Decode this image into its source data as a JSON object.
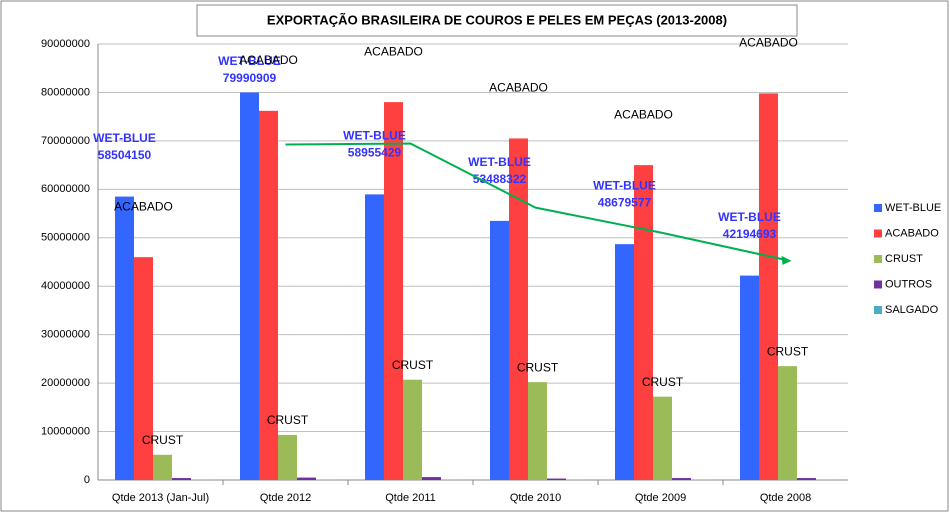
{
  "chart_data": {
    "type": "bar",
    "title": "EXPORTAÇÃO BRASILEIRA DE COUROS E PELES EM PEÇAS (2013-2008)",
    "categories": [
      "Qtde 2013 (Jan-Jul)",
      "Qtde 2012",
      "Qtde 2011",
      "Qtde 2010",
      "Qtde 2009",
      "Qtde 2008"
    ],
    "series": [
      {
        "name": "WET-BLUE",
        "color": "#3366ff",
        "labels": "name_value",
        "values": [
          58504150,
          79990909,
          58955429,
          53488322,
          48679577,
          42194693
        ]
      },
      {
        "name": "ACABADO",
        "color": "#ff4040",
        "labels": "name",
        "values": [
          46000000,
          76200000,
          78000000,
          70500000,
          65000000,
          79800000
        ]
      },
      {
        "name": "CRUST",
        "color": "#9bbb59",
        "labels": "name",
        "values": [
          5200000,
          9300000,
          20700000,
          20200000,
          17200000,
          23500000
        ]
      },
      {
        "name": "OUTROS",
        "color": "#7030a0",
        "values": [
          400000,
          500000,
          600000,
          300000,
          400000,
          400000
        ]
      },
      {
        "name": "SALGADO",
        "color": "#4bacc6",
        "values": [
          100000,
          100000,
          100000,
          100000,
          100000,
          100000
        ]
      }
    ],
    "trendline": {
      "color": "#00b050",
      "values": [
        null,
        69247530,
        69473169,
        56221876,
        51083950,
        45437135
      ]
    },
    "ylim": [
      0,
      90000000
    ],
    "yticks": [
      0,
      10000000,
      20000000,
      30000000,
      40000000,
      50000000,
      60000000,
      70000000,
      80000000,
      90000000
    ],
    "grid": true,
    "legend": "right"
  }
}
